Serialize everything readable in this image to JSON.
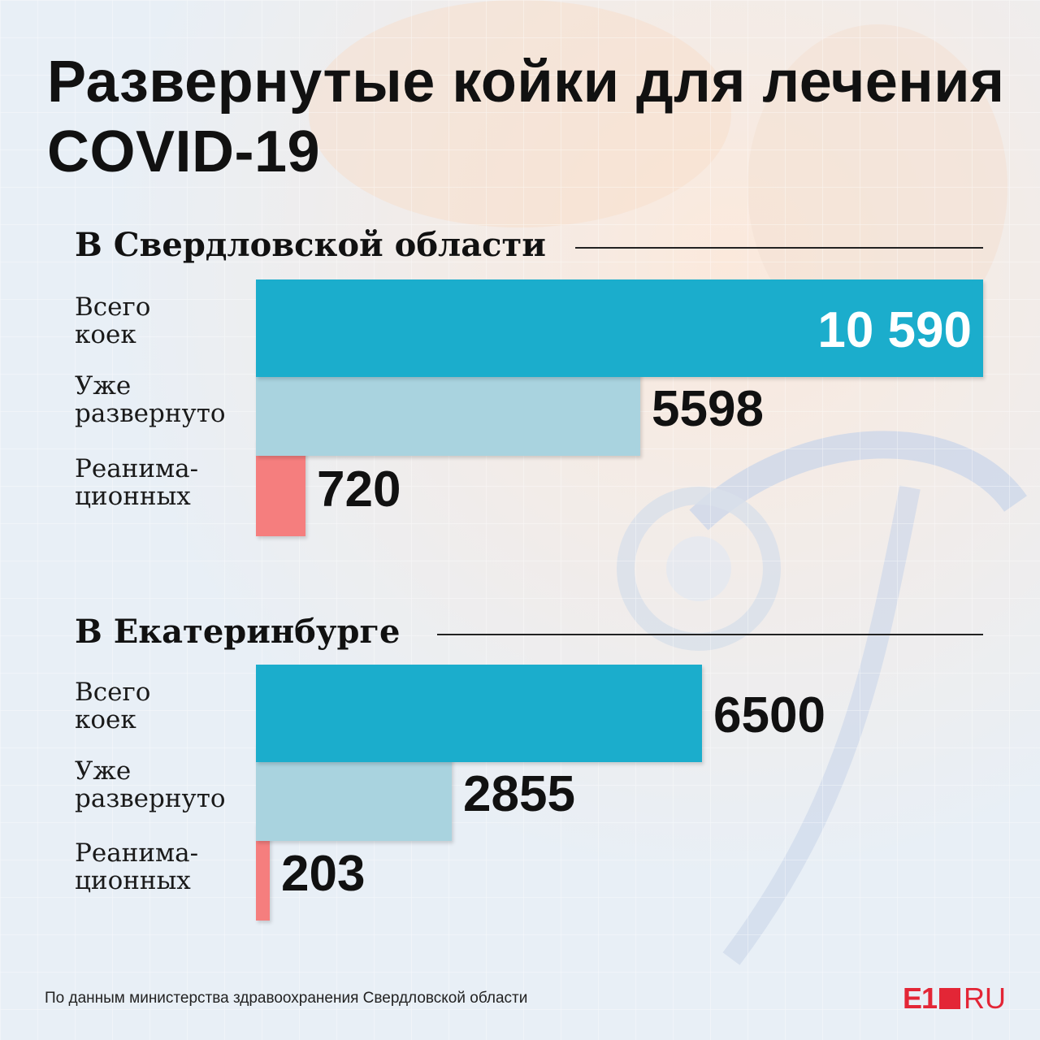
{
  "title": "Развернутые койки для лечения COVID-19",
  "colors": {
    "total": "#1badcc",
    "deployed": "#a9d3df",
    "icu": "#f57e7e"
  },
  "chart_data": [
    {
      "type": "bar",
      "orientation": "horizontal",
      "title": "В Свердловской области",
      "categories": [
        "Всего\nкоек",
        "Уже\nразвернуто",
        "Реанима-\nционных"
      ],
      "values": [
        10590,
        5598,
        720
      ],
      "value_labels": [
        "10 590",
        "5598",
        "720"
      ],
      "xlim": [
        0,
        10590
      ]
    },
    {
      "type": "bar",
      "orientation": "horizontal",
      "title": "В Екатеринбурге",
      "categories": [
        "Всего\nкоек",
        "Уже\nразвернуто",
        "Реанима-\nционных"
      ],
      "values": [
        6500,
        2855,
        203
      ],
      "value_labels": [
        "6500",
        "2855",
        "203"
      ],
      "xlim": [
        0,
        10590
      ]
    }
  ],
  "source": "По данным министерства здравоохранения Свердловской области",
  "logo": {
    "e1": "E1",
    "ru": "RU"
  }
}
